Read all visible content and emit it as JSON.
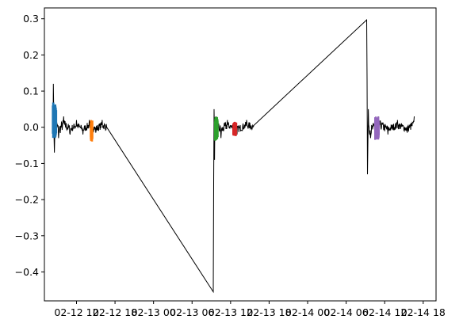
{
  "chart_data": {
    "type": "line",
    "title": "",
    "xlabel": "",
    "ylabel": "",
    "x_tick_labels": [
      "02-12 12",
      "02-12 18",
      "02-13 00",
      "02-13 06",
      "02-13 12",
      "02-13 18",
      "02-14 00",
      "02-14 06",
      "02-14 12",
      "02-14 18"
    ],
    "x_tick_hours": [
      12,
      18,
      24,
      30,
      36,
      42,
      48,
      54,
      60,
      66
    ],
    "y_ticks": [
      -0.4,
      -0.3,
      -0.2,
      -0.1,
      0.0,
      0.1,
      0.2,
      0.3
    ],
    "y_tick_labels": [
      "−0.4",
      "−0.3",
      "−0.2",
      "−0.1",
      "0.0",
      "0.1",
      "0.2",
      "0.3"
    ],
    "ylim": [
      -0.48,
      0.33
    ],
    "xlim_hours": [
      7.0,
      68.0
    ],
    "grid": false,
    "series": [
      {
        "role": "trace",
        "color": "#000000",
        "points": [
          [
            8.3,
            0.0
          ],
          [
            8.4,
            0.12
          ],
          [
            8.55,
            -0.07
          ],
          [
            8.8,
            0.04
          ],
          [
            9.2,
            -0.03
          ],
          [
            10.0,
            0.03
          ],
          [
            11.0,
            -0.02
          ],
          [
            12.0,
            0.02
          ],
          [
            13.0,
            -0.02
          ],
          [
            14.0,
            0.02
          ],
          [
            15.0,
            -0.015
          ],
          [
            16.0,
            0.02
          ],
          [
            16.7,
            0.0
          ],
          [
            33.3,
            -0.455
          ],
          [
            33.42,
            0.05
          ],
          [
            33.5,
            -0.09
          ],
          [
            33.7,
            0.03
          ],
          [
            34.5,
            -0.03
          ],
          [
            35.5,
            0.02
          ],
          [
            37.0,
            -0.02
          ],
          [
            38.5,
            0.02
          ],
          [
            39.6,
            0.005
          ],
          [
            57.2,
            0.297
          ],
          [
            57.32,
            -0.13
          ],
          [
            57.45,
            0.05
          ],
          [
            57.8,
            -0.03
          ],
          [
            59.0,
            0.03
          ],
          [
            60.5,
            -0.02
          ],
          [
            62.0,
            0.02
          ],
          [
            63.5,
            -0.015
          ],
          [
            64.6,
            0.03
          ]
        ]
      },
      {
        "role": "marker",
        "color": "#1f77b4",
        "x": [
          8.3,
          8.85
        ],
        "y": [
          -0.03,
          0.07
        ]
      },
      {
        "role": "marker",
        "color": "#ff7f0e",
        "x": [
          14.2,
          14.5
        ],
        "y": [
          -0.04,
          0.02
        ]
      },
      {
        "role": "marker",
        "color": "#2ca02c",
        "x": [
          33.55,
          34.0
        ],
        "y": [
          -0.04,
          0.03
        ]
      },
      {
        "role": "marker",
        "color": "#d62728",
        "x": [
          36.4,
          36.9
        ],
        "y": [
          -0.025,
          0.015
        ]
      },
      {
        "role": "marker",
        "color": "#9467bd",
        "x": [
          58.5,
          59.1
        ],
        "y": [
          -0.035,
          0.03
        ]
      }
    ]
  }
}
